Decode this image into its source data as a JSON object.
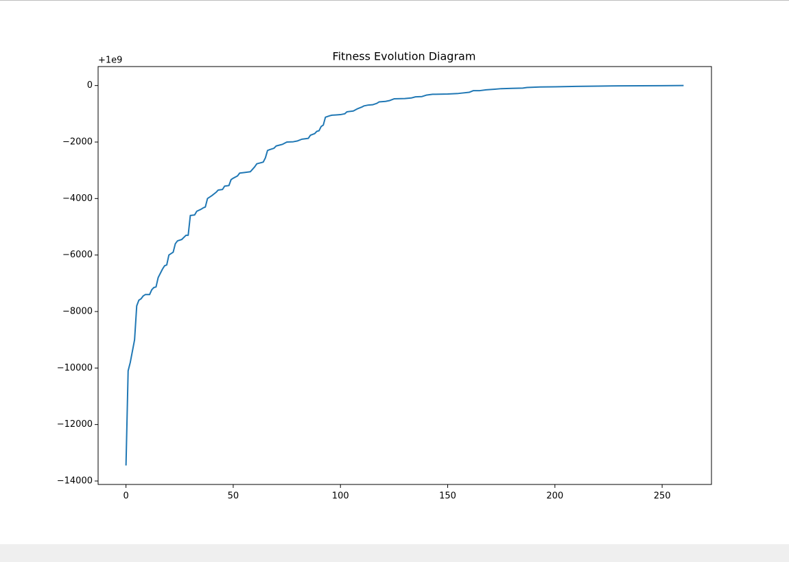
{
  "chart_data": {
    "type": "line",
    "title": "Fitness Evolution Diagram",
    "offset_label": "+1e9",
    "x": [
      0,
      1,
      2,
      4,
      5,
      6,
      7,
      8,
      9,
      11,
      12,
      13,
      14,
      15,
      17,
      18,
      19,
      20,
      21,
      22,
      23,
      24,
      26,
      28,
      29,
      30,
      32,
      33,
      35,
      36,
      37,
      38,
      40,
      42,
      43,
      45,
      46,
      48,
      49,
      50,
      52,
      53,
      55,
      58,
      60,
      61,
      63,
      64,
      65,
      66,
      67,
      69,
      70,
      72,
      73,
      75,
      78,
      80,
      82,
      85,
      86,
      88,
      89,
      90,
      91,
      92,
      93,
      95,
      96,
      98,
      100,
      102,
      103,
      106,
      108,
      110,
      111,
      113,
      115,
      117,
      118,
      121,
      123,
      125,
      130,
      133,
      135,
      138,
      140,
      143,
      150,
      155,
      160,
      162,
      165,
      168,
      172,
      175,
      180,
      185,
      187,
      190,
      193,
      200,
      210,
      220,
      230,
      240,
      250,
      260
    ],
    "values": [
      -13450,
      -10100,
      -9800,
      -9000,
      -7800,
      -7600,
      -7550,
      -7450,
      -7400,
      -7400,
      -7230,
      -7150,
      -7130,
      -6800,
      -6500,
      -6380,
      -6350,
      -6000,
      -5950,
      -5900,
      -5600,
      -5500,
      -5450,
      -5300,
      -5300,
      -4600,
      -4580,
      -4450,
      -4380,
      -4330,
      -4300,
      -4000,
      -3900,
      -3780,
      -3700,
      -3680,
      -3560,
      -3540,
      -3330,
      -3280,
      -3200,
      -3100,
      -3080,
      -3050,
      -2880,
      -2770,
      -2730,
      -2710,
      -2560,
      -2300,
      -2270,
      -2220,
      -2140,
      -2100,
      -2080,
      -2000,
      -1990,
      -1960,
      -1900,
      -1870,
      -1760,
      -1700,
      -1620,
      -1600,
      -1450,
      -1400,
      -1120,
      -1070,
      -1050,
      -1040,
      -1030,
      -1000,
      -930,
      -900,
      -820,
      -760,
      -720,
      -690,
      -680,
      -630,
      -580,
      -560,
      -530,
      -470,
      -460,
      -440,
      -400,
      -390,
      -340,
      -310,
      -300,
      -280,
      -240,
      -180,
      -180,
      -150,
      -130,
      -110,
      -100,
      -90,
      -70,
      -60,
      -50,
      -45,
      -30,
      -20,
      -12,
      -8,
      -4,
      0
    ],
    "color": "#1f77b4",
    "xlim": [
      -13,
      273
    ],
    "ylim": [
      -14122,
      672
    ],
    "xticks": [
      0,
      50,
      100,
      150,
      200,
      250
    ],
    "yticks": [
      {
        "value": -14000,
        "label": "−14000"
      },
      {
        "value": -12000,
        "label": "−12000"
      },
      {
        "value": -10000,
        "label": "−10000"
      },
      {
        "value": -8000,
        "label": "−8000"
      },
      {
        "value": -6000,
        "label": "−6000"
      },
      {
        "value": -4000,
        "label": "−4000"
      },
      {
        "value": -2000,
        "label": "−2000"
      },
      0
    ]
  }
}
